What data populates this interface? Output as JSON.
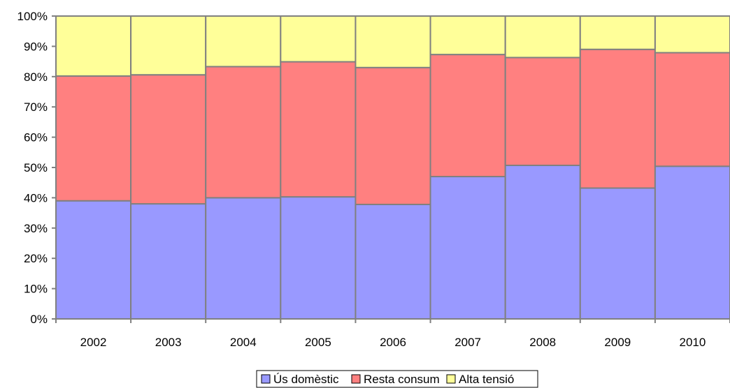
{
  "chart_data": {
    "type": "bar",
    "stacked": true,
    "normalized": true,
    "categories": [
      "2002",
      "2003",
      "2004",
      "2005",
      "2006",
      "2007",
      "2008",
      "2009",
      "2010"
    ],
    "series": [
      {
        "name": "Ús domèstic",
        "color": "#9999ff",
        "values": [
          39,
          38,
          40,
          40.3,
          37.8,
          47,
          50.7,
          43.2,
          50.4
        ]
      },
      {
        "name": "Resta consum",
        "color": "#ff8080",
        "values": [
          41.2,
          42.6,
          43.3,
          44.6,
          45.2,
          40.3,
          35.6,
          45.8,
          37.5
        ]
      },
      {
        "name": "Alta tensió",
        "color": "#ffff99",
        "values": [
          19.8,
          19.4,
          16.7,
          15.1,
          17,
          12.7,
          13.7,
          11,
          12.1
        ]
      }
    ],
    "y_ticks": [
      "0%",
      "10%",
      "20%",
      "30%",
      "40%",
      "50%",
      "60%",
      "70%",
      "80%",
      "90%",
      "100%"
    ],
    "ylim": [
      0,
      100
    ],
    "grid": false,
    "legend_position": "bottom"
  }
}
